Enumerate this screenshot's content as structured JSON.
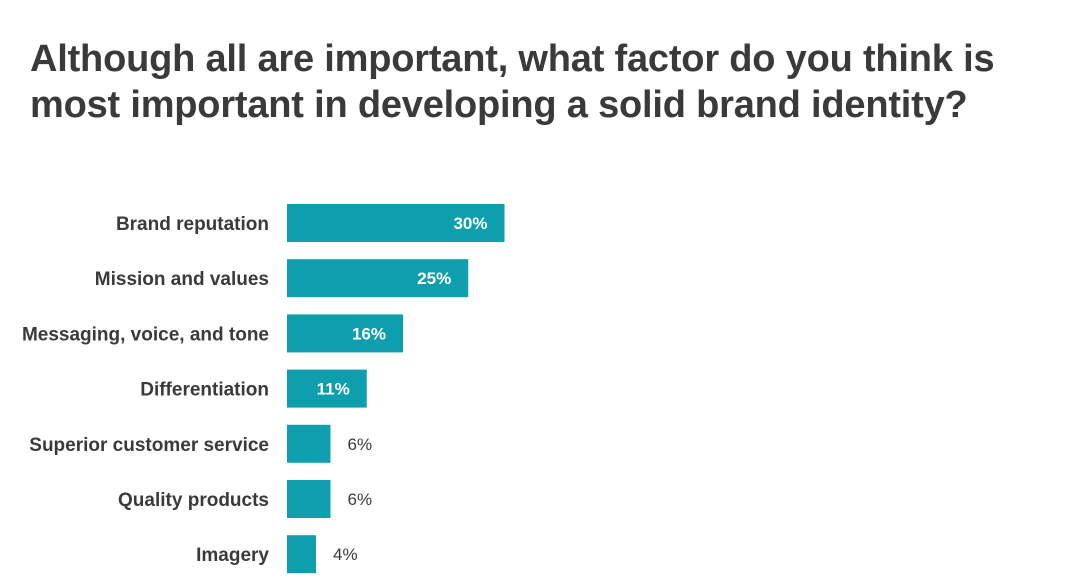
{
  "chart_data": {
    "type": "bar",
    "orientation": "horizontal",
    "title": "Although all are important, what factor do you think is most important in developing a solid brand identity?",
    "categories": [
      "Brand reputation",
      "Mission and values",
      "Messaging, voice, and tone",
      "Differentiation",
      "Superior customer service",
      "Quality products",
      "Imagery"
    ],
    "values": [
      30,
      25,
      16,
      11,
      6,
      6,
      4
    ],
    "value_labels": [
      "30%",
      "25%",
      "16%",
      "11%",
      "6%",
      "6%",
      "4%"
    ],
    "unit": "%",
    "xlim": [
      0,
      100
    ],
    "grid": false,
    "legend": "none",
    "colors": {
      "bar": "#0e9fae",
      "text": "#3a3a3a",
      "inside_label": "#ffffff"
    }
  }
}
